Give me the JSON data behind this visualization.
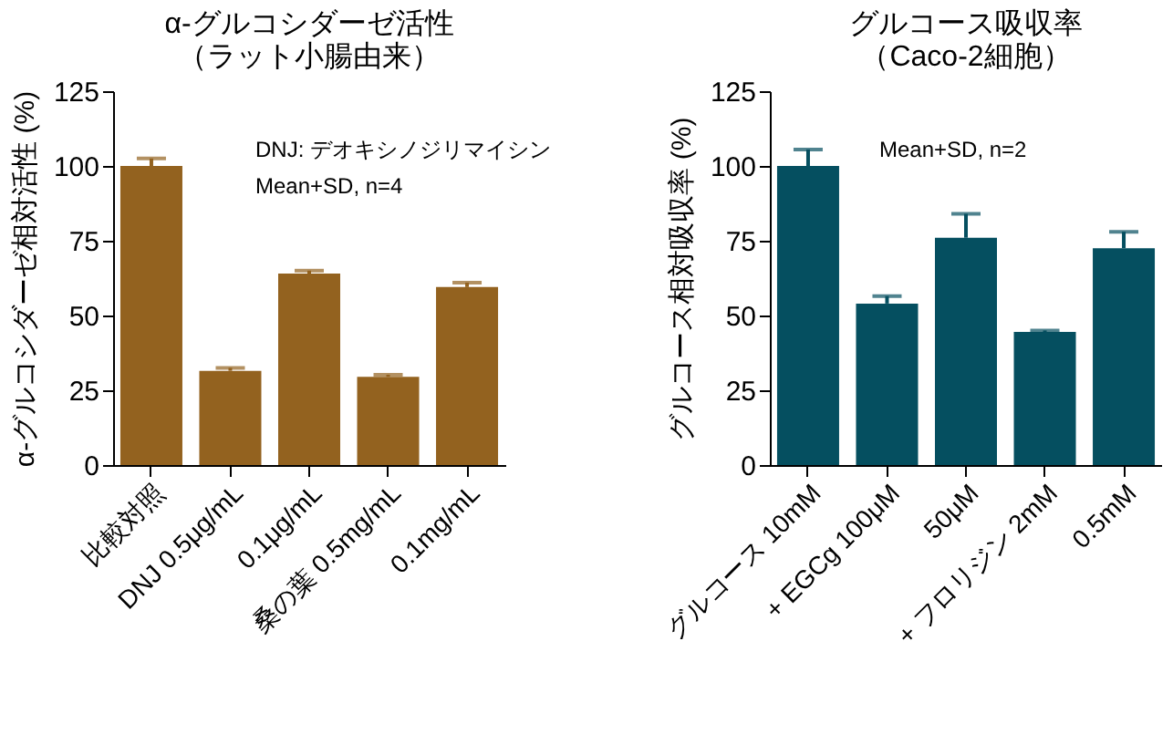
{
  "chart_data": [
    {
      "type": "bar",
      "title": [
        "α-グルコシダーゼ活性",
        "（ラット小腸由来）"
      ],
      "ylabel": "α-グルコシダーゼ相対活性 (%)",
      "categories": [
        "比較対照",
        "DNJ  0.5μg/mL",
        "0.1μg/mL",
        "桑の葉  0.5mg/mL",
        "0.1mg/mL"
      ],
      "series": [
        {
          "color": "#93621f",
          "values": [
            100,
            31.5,
            64,
            29.5,
            59.5
          ],
          "errors": [
            [
              100,
              102.5
            ],
            [
              31.5,
              32.5
            ],
            [
              64,
              65
            ],
            [
              29.5,
              30.2
            ],
            [
              59.5,
              61
            ]
          ]
        }
      ],
      "ylim": [
        0,
        125
      ],
      "yticks": [
        0,
        25,
        50,
        75,
        100,
        125
      ],
      "grid": false,
      "annotations": [
        "DNJ: デオキシノジリマイシン",
        "Mean+SD, n=4"
      ]
    },
    {
      "type": "bar",
      "title": [
        "グルコース吸収率",
        "（Caco-2細胞）"
      ],
      "ylabel": "グルコース相対吸収率 (%)",
      "categories": [
        "グルコース 10mM",
        "+ EGCg 100μM",
        "50μM",
        "+ フロリジン 2mM",
        "0.5mM"
      ],
      "series": [
        {
          "color": "#054f60",
          "values": [
            100,
            54,
            76,
            44.5,
            72.5
          ],
          "errors": [
            [
              100,
              105.5
            ],
            [
              54,
              56.5
            ],
            [
              76,
              84
            ],
            [
              44.5,
              45
            ],
            [
              72.5,
              78
            ]
          ]
        }
      ],
      "ylim": [
        0,
        125
      ],
      "yticks": [
        0,
        25,
        50,
        75,
        100,
        125
      ],
      "grid": false,
      "annotations": [
        "Mean+SD, n=2"
      ]
    }
  ]
}
